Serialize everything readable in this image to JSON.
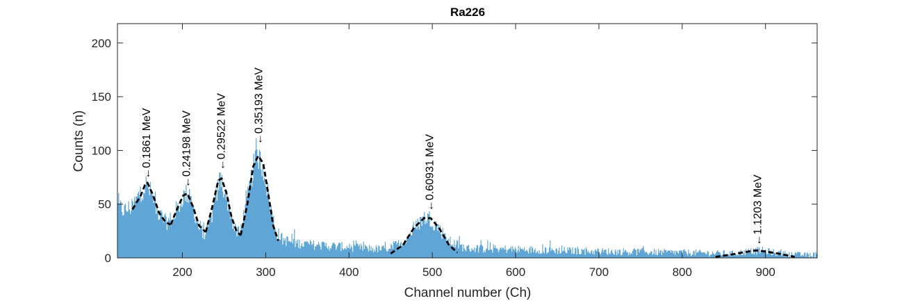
{
  "chart_data": {
    "type": "area",
    "title": "Ra226",
    "xlabel": "Channel number (Ch)",
    "ylabel": "Counts (n)",
    "xlim": [
      122,
      962
    ],
    "ylim": [
      0,
      218
    ],
    "xticks": [
      200,
      300,
      400,
      500,
      600,
      700,
      800,
      900
    ],
    "yticks": [
      0,
      50,
      100,
      150,
      200
    ],
    "grid": false,
    "colors": {
      "histogram": "#5fa5d6",
      "fit": "#000000",
      "axes": "#262626"
    },
    "histogram_envelope": [
      [
        122,
        48
      ],
      [
        130,
        44
      ],
      [
        140,
        48
      ],
      [
        150,
        62
      ],
      [
        156,
        68
      ],
      [
        162,
        60
      ],
      [
        170,
        42
      ],
      [
        180,
        33
      ],
      [
        190,
        38
      ],
      [
        200,
        57
      ],
      [
        205,
        60
      ],
      [
        212,
        48
      ],
      [
        220,
        27
      ],
      [
        228,
        22
      ],
      [
        235,
        40
      ],
      [
        245,
        75
      ],
      [
        255,
        50
      ],
      [
        262,
        26
      ],
      [
        268,
        22
      ],
      [
        275,
        45
      ],
      [
        285,
        85
      ],
      [
        290,
        96
      ],
      [
        298,
        80
      ],
      [
        305,
        48
      ],
      [
        312,
        25
      ],
      [
        320,
        17
      ],
      [
        335,
        14
      ],
      [
        360,
        12
      ],
      [
        400,
        10
      ],
      [
        440,
        8
      ],
      [
        460,
        13
      ],
      [
        475,
        24
      ],
      [
        488,
        37
      ],
      [
        495,
        38
      ],
      [
        505,
        30
      ],
      [
        520,
        15
      ],
      [
        540,
        9
      ],
      [
        600,
        8
      ],
      [
        700,
        6
      ],
      [
        800,
        5
      ],
      [
        860,
        4
      ],
      [
        880,
        6
      ],
      [
        895,
        7
      ],
      [
        910,
        5
      ],
      [
        935,
        3
      ],
      [
        962,
        3
      ]
    ],
    "fit_segments": [
      {
        "name": "",
        "x": [
          140,
          150,
          155,
          158,
          165,
          172,
          180,
          186
        ],
        "y": [
          45,
          58,
          68,
          70,
          58,
          42,
          33,
          31
        ]
      },
      {
        "name": "",
        "x": [
          186,
          195,
          201,
          206,
          213,
          220,
          228
        ],
        "y": [
          31,
          48,
          58,
          60,
          47,
          30,
          24
        ]
      },
      {
        "name": "",
        "x": [
          228,
          236,
          243,
          247,
          253,
          259,
          265,
          270
        ],
        "y": [
          24,
          48,
          72,
          74,
          60,
          38,
          25,
          21
        ]
      },
      {
        "name": "",
        "x": [
          270,
          278,
          285,
          291,
          297,
          303,
          309,
          315
        ],
        "y": [
          21,
          50,
          85,
          95,
          88,
          60,
          30,
          16
        ]
      },
      {
        "name": "",
        "x": [
          450,
          465,
          478,
          490,
          498,
          508,
          520,
          530
        ],
        "y": [
          4,
          12,
          28,
          37,
          37,
          28,
          12,
          5
        ]
      },
      {
        "name": "",
        "x": [
          840,
          858,
          872,
          888,
          900,
          915,
          935
        ],
        "y": [
          1,
          3,
          5,
          7,
          6,
          4,
          1
        ]
      }
    ],
    "annotations": [
      {
        "text": "←0.1861 MeV",
        "x": 156,
        "y": 72
      },
      {
        "text": "←0.24198 MeV",
        "x": 204,
        "y": 64
      },
      {
        "text": "←0.29522 MeV",
        "x": 246,
        "y": 80
      },
      {
        "text": "←0.35193 MeV",
        "x": 291,
        "y": 104
      },
      {
        "text": "←0.60931 MeV",
        "x": 496,
        "y": 42
      },
      {
        "text": "←1.1203 MeV",
        "x": 890,
        "y": 10
      }
    ]
  }
}
